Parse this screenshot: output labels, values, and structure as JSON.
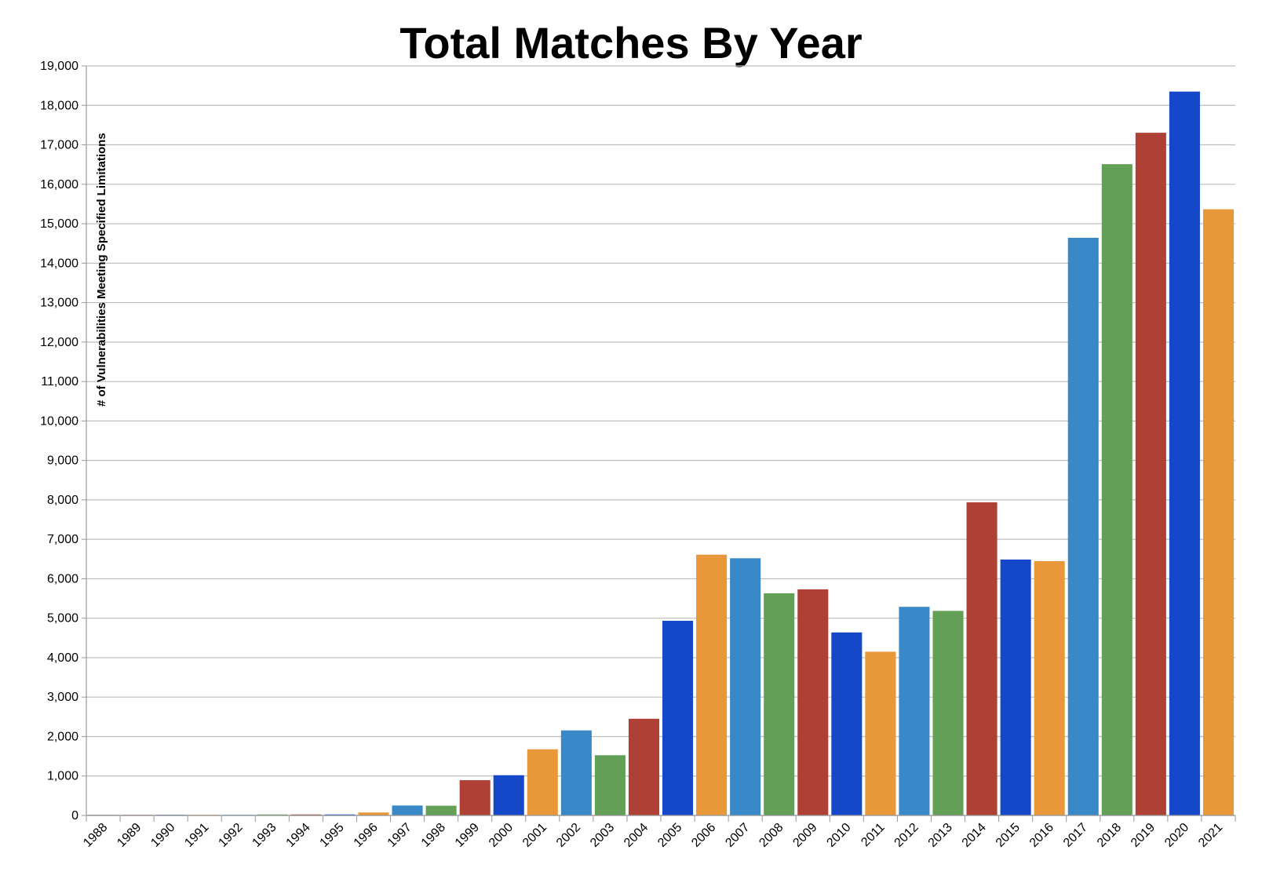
{
  "chart_data": {
    "type": "bar",
    "title": "Total Matches By Year",
    "xlabel": "",
    "ylabel": "# of Vulnerabilities Meeting Specified Limitations",
    "ylim": [
      0,
      19000
    ],
    "yticks": [
      0,
      1000,
      2000,
      3000,
      4000,
      5000,
      6000,
      7000,
      8000,
      9000,
      10000,
      11000,
      12000,
      13000,
      14000,
      15000,
      16000,
      17000,
      18000,
      19000
    ],
    "ytick_labels": [
      "0",
      "1,000",
      "2,000",
      "3,000",
      "4,000",
      "5,000",
      "6,000",
      "7,000",
      "8,000",
      "9,000",
      "10,000",
      "11,000",
      "12,000",
      "13,000",
      "14,000",
      "15,000",
      "16,000",
      "17,000",
      "18,000",
      "19,000"
    ],
    "grid": true,
    "categories": [
      "1988",
      "1989",
      "1990",
      "1991",
      "1992",
      "1993",
      "1994",
      "1995",
      "1996",
      "1997",
      "1998",
      "1999",
      "2000",
      "2001",
      "2002",
      "2003",
      "2004",
      "2005",
      "2006",
      "2007",
      "2008",
      "2009",
      "2010",
      "2011",
      "2012",
      "2013",
      "2014",
      "2015",
      "2016",
      "2017",
      "2018",
      "2019",
      "2020",
      "2021"
    ],
    "values": [
      2,
      3,
      11,
      15,
      13,
      25,
      25,
      25,
      75,
      252,
      246,
      894,
      1020,
      1677,
      2156,
      1527,
      2451,
      4935,
      6610,
      6520,
      5632,
      5732,
      4639,
      4150,
      5288,
      5186,
      7937,
      6487,
      6447,
      14643,
      16510,
      17306,
      18350,
      15366
    ],
    "bar_colors": [
      "#649f58",
      "#ae4035",
      "#1548c9",
      "#e99839",
      "#3988c8",
      "#649f58",
      "#ae4035",
      "#1548c9",
      "#e99839",
      "#3988c8",
      "#649f58",
      "#ae4035",
      "#1548c9",
      "#e99839",
      "#3988c8",
      "#649f58",
      "#ae4035",
      "#1548c9",
      "#e99839",
      "#3988c8",
      "#649f58",
      "#ae4035",
      "#1548c9",
      "#e99839",
      "#3988c8",
      "#649f58",
      "#ae4035",
      "#1548c9",
      "#e99839",
      "#3988c8",
      "#649f58",
      "#ae4035",
      "#1548c9",
      "#e99839"
    ]
  }
}
